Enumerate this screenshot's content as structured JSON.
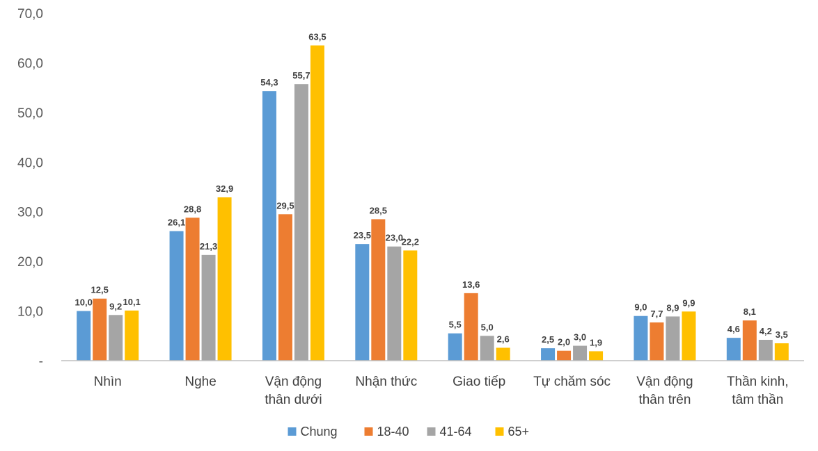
{
  "chart_data": {
    "type": "bar",
    "categories": [
      [
        "Nhìn"
      ],
      [
        "Nghe"
      ],
      [
        "Vận động",
        "thân dưới"
      ],
      [
        "Nhận thức"
      ],
      [
        "Giao tiếp"
      ],
      [
        "Tự chăm sóc"
      ],
      [
        "Vận động",
        "thân trên"
      ],
      [
        "Thần kinh,",
        "tâm thần"
      ]
    ],
    "series": [
      {
        "name": "Chung",
        "color": "#5B9BD5",
        "values": [
          10.0,
          26.1,
          54.3,
          23.5,
          5.5,
          2.5,
          9.0,
          4.6
        ],
        "labels": [
          "10,0",
          "26,1",
          "54,3",
          "23,5",
          "5,5",
          "2,5",
          "9,0",
          "4,6"
        ]
      },
      {
        "name": "18-40",
        "color": "#ED7D31",
        "values": [
          12.5,
          28.8,
          29.5,
          28.5,
          13.6,
          2.0,
          7.7,
          8.1
        ],
        "labels": [
          "12,5",
          "28,8",
          "29,5",
          "28,5",
          "13,6",
          "2,0",
          "7,7",
          "8,1"
        ]
      },
      {
        "name": "41-64",
        "color": "#A5A5A5",
        "values": [
          9.2,
          21.3,
          55.7,
          23.0,
          5.0,
          3.0,
          8.9,
          4.2
        ],
        "labels": [
          "9,2",
          "21,3",
          "55,7",
          "23,0",
          "5,0",
          "3,0",
          "8,9",
          "4,2"
        ]
      },
      {
        "name": "65+",
        "color": "#FFC000",
        "values": [
          10.1,
          32.9,
          63.5,
          22.2,
          2.6,
          1.9,
          9.9,
          3.5
        ],
        "labels": [
          "10,1",
          "32,9",
          "63,5",
          "22,2",
          "2,6",
          "1,9",
          "9,9",
          "3,5"
        ]
      }
    ],
    "yticks": [
      "-",
      "10,0",
      "20,0",
      "30,0",
      "40,0",
      "50,0",
      "60,0",
      "70,0"
    ],
    "ylim": [
      0,
      70
    ],
    "grid": false,
    "legend_position": "bottom"
  }
}
